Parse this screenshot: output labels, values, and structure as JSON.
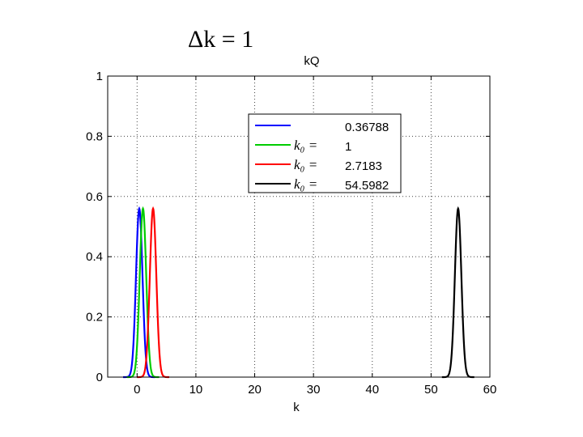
{
  "heading": "Δk = 1",
  "chart_data": {
    "type": "line",
    "title": "kQ",
    "xlabel": "k",
    "ylabel": "",
    "xlim": [
      -5,
      60
    ],
    "ylim": [
      0,
      1
    ],
    "xticks": [
      0,
      10,
      20,
      30,
      40,
      50,
      60
    ],
    "yticks": [
      0,
      0.2,
      0.4,
      0.6,
      0.8,
      1
    ],
    "xtick_labels": [
      "0",
      "10",
      "20",
      "30",
      "40",
      "50",
      "60"
    ],
    "ytick_labels": [
      "0",
      "0.2",
      "0.4",
      "0.6",
      "0.8",
      "1"
    ],
    "grid": true,
    "legend_position": "top-center",
    "legend_prefix": "k₀ =",
    "series": [
      {
        "label": "0.36788",
        "center": 0.36788,
        "peak": 0.56,
        "sigma": 0.55,
        "color": "#0000ff"
      },
      {
        "label": "1",
        "center": 1,
        "peak": 0.56,
        "sigma": 0.55,
        "color": "#00cc00"
      },
      {
        "label": "2.7183",
        "center": 2.7183,
        "peak": 0.56,
        "sigma": 0.55,
        "color": "#ff0000"
      },
      {
        "label": "54.5982",
        "center": 54.5982,
        "peak": 0.56,
        "sigma": 0.55,
        "color": "#000000"
      }
    ]
  }
}
